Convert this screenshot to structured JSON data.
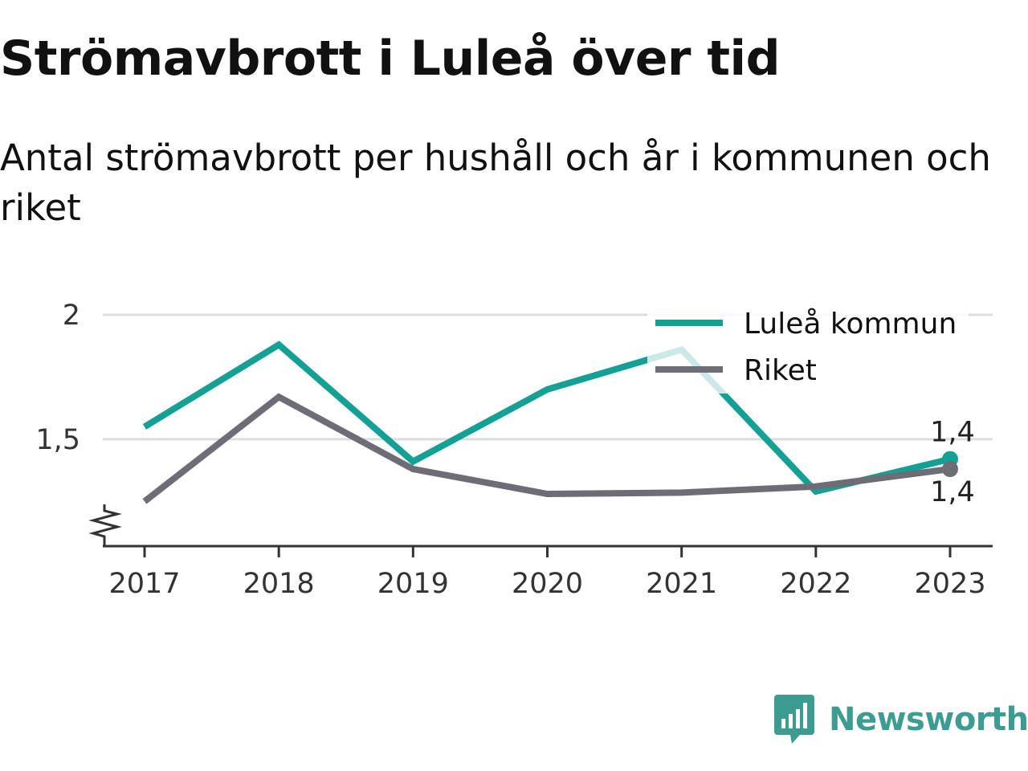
{
  "chart_data": {
    "type": "line",
    "title": "Strömavbrott i Luleå över tid",
    "subtitle": "Antal strömavbrott per hushåll och år i kommunen och riket",
    "x": [
      "2017",
      "2018",
      "2019",
      "2020",
      "2021",
      "2022",
      "2023"
    ],
    "yticks": [
      {
        "value": 1.5,
        "label": "1,5"
      },
      {
        "value": 2.0,
        "label": "2"
      }
    ],
    "ylim": [
      1.07,
      2.0
    ],
    "axis_break": true,
    "grid": true,
    "legend_position": "top-right",
    "series": [
      {
        "name": "Luleå kommun",
        "color": "#14a094",
        "values": [
          1.55,
          1.88,
          1.41,
          1.7,
          1.86,
          1.29,
          1.42
        ],
        "end_label": "1,4"
      },
      {
        "name": "Riket",
        "color": "#6e6d75",
        "values": [
          1.25,
          1.67,
          1.38,
          1.28,
          1.285,
          1.31,
          1.38
        ],
        "end_label": "1,4"
      }
    ]
  },
  "brand": {
    "name": "Newsworthy",
    "color": "#3d9c91",
    "icon": "newsworthy-logo-icon"
  }
}
